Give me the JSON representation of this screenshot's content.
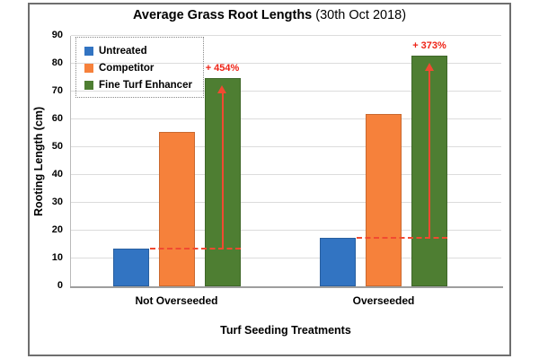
{
  "chart_data": {
    "type": "bar",
    "title": "Average Grass Root Lengths (30th Oct 2018)",
    "title_main": "Average Grass Root Lengths",
    "title_suffix": " (30th Oct 2018)",
    "xlabel": "Turf Seeding Treatments",
    "ylabel": "Rooting Length (cm)",
    "categories": [
      "Not Overseeded",
      "Overseeded"
    ],
    "series": [
      {
        "name": "Untreated",
        "color": "#3274c2",
        "values": [
          13.5,
          17.5
        ]
      },
      {
        "name": "Competitor",
        "color": "#f6813b",
        "values": [
          55.5,
          62
        ]
      },
      {
        "name": "Fine Turf Enhancer",
        "color": "#4e7e32",
        "values": [
          75,
          83
        ]
      }
    ],
    "annotations": [
      {
        "label": "+ 454%",
        "category": "Not Overseeded",
        "from_series": "Untreated",
        "to_series": "Fine Turf Enhancer"
      },
      {
        "label": "+ 373%",
        "category": "Overseeded",
        "from_series": "Untreated",
        "to_series": "Fine Turf Enhancer"
      }
    ],
    "ylim": [
      0,
      90
    ],
    "yticks": [
      0,
      10,
      20,
      30,
      40,
      50,
      60,
      70,
      80,
      90
    ],
    "grid": "horizontal",
    "legend_position": "top-left-inside",
    "annotation_color": "#ee2316",
    "annotation_line_color": "#f14a31",
    "gridline_color": "#dcdcdc",
    "axis_line_color": "#9e9e9e",
    "y_axis_line_color": "#b9b9b9",
    "frame_border_color": "#6e6e6e"
  }
}
